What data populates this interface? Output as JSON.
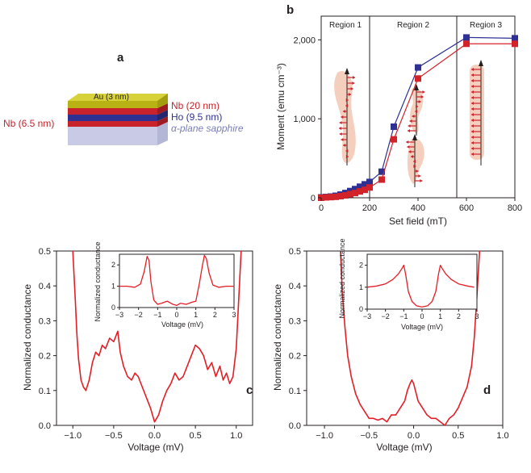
{
  "figure": {
    "panels": {
      "a": {
        "letter": "a",
        "layers": [
          {
            "label": "Au (3 nm)",
            "color": "#c9c31a"
          },
          {
            "label": "Nb (20 nm)",
            "color": "#c8232c"
          },
          {
            "label": "Ho (9.5 nm)",
            "color": "#2e3192"
          },
          {
            "label": "Nb (6.5 nm)",
            "color": "#c8232c"
          },
          {
            "label": "α-plane sapphire",
            "color": "#c9cbe6"
          }
        ],
        "label_colors": {
          "nb": "#c8232c",
          "ho": "#2e3192",
          "sapphire": "#7b7fb8"
        }
      },
      "b": {
        "letter": "b"
      },
      "c": {
        "letter": "c"
      },
      "d": {
        "letter": "d"
      }
    }
  },
  "chart_data": [
    {
      "id": "b",
      "type": "line",
      "title": "",
      "xlabel": "Set field (mT)",
      "ylabel": "Moment (emu cm⁻³)",
      "xlim": [
        0,
        800
      ],
      "ylim": [
        0,
        2300
      ],
      "xticks": [
        "0",
        "200",
        "400",
        "600",
        "800"
      ],
      "yticks": [
        "0",
        "1,000",
        "2,000"
      ],
      "regions": [
        {
          "label": "Region 1",
          "from": 0,
          "to": 200
        },
        {
          "label": "Region 2",
          "from": 200,
          "to": 560
        },
        {
          "label": "Region 3",
          "from": 560,
          "to": 800
        }
      ],
      "series": [
        {
          "name": "blue",
          "color": "#2e3192",
          "x": [
            0,
            20,
            40,
            60,
            80,
            100,
            120,
            140,
            160,
            180,
            200,
            250,
            300,
            400,
            600,
            800
          ],
          "values": [
            5,
            10,
            15,
            25,
            40,
            60,
            85,
            110,
            140,
            170,
            200,
            330,
            900,
            1650,
            2030,
            2020
          ]
        },
        {
          "name": "red",
          "color": "#d2232a",
          "x": [
            0,
            20,
            40,
            60,
            80,
            100,
            120,
            140,
            160,
            180,
            200,
            250,
            300,
            400,
            600,
            800
          ],
          "values": [
            0,
            5,
            8,
            12,
            20,
            30,
            45,
            60,
            80,
            100,
            130,
            230,
            740,
            1510,
            1950,
            1950
          ]
        }
      ],
      "colors": {
        "region_line": "#231f20",
        "spin_arrow": "#c8232c",
        "spin_blob": "#f2c7b3"
      }
    },
    {
      "id": "c",
      "type": "line",
      "xlabel": "Voltage (mV)",
      "ylabel": "Normalized conductance",
      "xlim": [
        -1.2,
        1.2
      ],
      "ylim": [
        0,
        0.5
      ],
      "xticks": [
        "−1.0",
        "−0.5",
        "0.0",
        "0.5",
        "1.0"
      ],
      "yticks": [
        "0.0",
        "0.1",
        "0.2",
        "0.3",
        "0.4",
        "0.5"
      ],
      "series": [
        {
          "name": "conductance",
          "color": "#e41e26",
          "x": [
            -1.0,
            -0.97,
            -0.95,
            -0.93,
            -0.9,
            -0.87,
            -0.84,
            -0.8,
            -0.76,
            -0.72,
            -0.68,
            -0.64,
            -0.6,
            -0.55,
            -0.5,
            -0.45,
            -0.42,
            -0.38,
            -0.33,
            -0.28,
            -0.24,
            -0.2,
            -0.15,
            -0.1,
            -0.05,
            0.0,
            0.05,
            0.1,
            0.15,
            0.2,
            0.25,
            0.3,
            0.35,
            0.4,
            0.45,
            0.5,
            0.55,
            0.6,
            0.65,
            0.7,
            0.75,
            0.8,
            0.84,
            0.88,
            0.92,
            0.96,
            1.0,
            1.03,
            1.06
          ],
          "values": [
            0.5,
            0.36,
            0.26,
            0.19,
            0.13,
            0.11,
            0.1,
            0.13,
            0.18,
            0.21,
            0.2,
            0.23,
            0.22,
            0.25,
            0.24,
            0.27,
            0.21,
            0.17,
            0.14,
            0.13,
            0.15,
            0.14,
            0.11,
            0.08,
            0.05,
            0.01,
            0.03,
            0.07,
            0.1,
            0.12,
            0.15,
            0.13,
            0.14,
            0.17,
            0.2,
            0.23,
            0.22,
            0.2,
            0.16,
            0.18,
            0.14,
            0.17,
            0.13,
            0.15,
            0.12,
            0.14,
            0.22,
            0.36,
            0.5
          ]
        }
      ],
      "inset": {
        "xlabel": "Voltage (mV)",
        "ylabel": "Normalized conductance",
        "xlim": [
          -3,
          3
        ],
        "ylim": [
          0,
          2.5
        ],
        "xticks": [
          "−3",
          "−2",
          "−1",
          "0",
          "1",
          "2",
          "3"
        ],
        "yticks": [
          "0",
          "1",
          "2"
        ],
        "x": [
          -3,
          -2.6,
          -2.2,
          -1.9,
          -1.7,
          -1.55,
          -1.45,
          -1.35,
          -1.2,
          -1.0,
          -0.8,
          -0.5,
          -0.2,
          0.0,
          0.2,
          0.5,
          0.8,
          1.0,
          1.2,
          1.35,
          1.45,
          1.55,
          1.7,
          1.9,
          2.2,
          2.6,
          3.0
        ],
        "values": [
          1.0,
          1.0,
          0.95,
          1.1,
          1.7,
          2.4,
          2.2,
          1.2,
          0.35,
          0.15,
          0.2,
          0.3,
          0.15,
          0.1,
          0.2,
          0.15,
          0.25,
          0.3,
          1.2,
          2.0,
          2.45,
          2.3,
          1.6,
          1.05,
          0.95,
          1.0,
          1.0
        ]
      },
      "letter": "c"
    },
    {
      "id": "d",
      "type": "line",
      "xlabel": "Voltage (mV)",
      "ylabel": "Normalized conductance",
      "xlim": [
        -1.2,
        1.0
      ],
      "ylim": [
        0,
        0.5
      ],
      "xticks": [
        "−1.0",
        "−0.5",
        "0.0",
        "0.5",
        "1.0"
      ],
      "yticks": [
        "0.0",
        "0.1",
        "0.2",
        "0.3",
        "0.4",
        "0.5"
      ],
      "series": [
        {
          "name": "conductance",
          "color": "#e41e26",
          "x": [
            -0.82,
            -0.8,
            -0.77,
            -0.74,
            -0.7,
            -0.65,
            -0.6,
            -0.55,
            -0.5,
            -0.45,
            -0.4,
            -0.35,
            -0.3,
            -0.25,
            -0.2,
            -0.15,
            -0.1,
            -0.07,
            -0.04,
            -0.02,
            0.0,
            0.02,
            0.05,
            0.1,
            0.15,
            0.2,
            0.25,
            0.3,
            0.35,
            0.4,
            0.45,
            0.5,
            0.55,
            0.6,
            0.65,
            0.68,
            0.71,
            0.74
          ],
          "values": [
            0.5,
            0.38,
            0.28,
            0.2,
            0.14,
            0.09,
            0.06,
            0.04,
            0.02,
            0.02,
            0.015,
            0.02,
            0.01,
            0.03,
            0.03,
            0.05,
            0.07,
            0.1,
            0.12,
            0.13,
            0.12,
            0.1,
            0.07,
            0.05,
            0.03,
            0.02,
            0.02,
            0.01,
            0.0,
            0.02,
            0.03,
            0.05,
            0.08,
            0.11,
            0.17,
            0.25,
            0.37,
            0.5
          ]
        }
      ],
      "inset": {
        "xlabel": "Voltage (mV)",
        "ylabel": "Normalized conductance",
        "xlim": [
          -3,
          3
        ],
        "ylim": [
          0,
          2.5
        ],
        "xticks": [
          "−3",
          "−2",
          "−1",
          "0",
          "1",
          "2",
          "3"
        ],
        "yticks": [
          "0",
          "1",
          "2"
        ],
        "x": [
          -3,
          -2.5,
          -2.0,
          -1.6,
          -1.3,
          -1.1,
          -1.0,
          -0.9,
          -0.75,
          -0.55,
          -0.3,
          0.0,
          0.3,
          0.55,
          0.75,
          0.9,
          1.0,
          1.1,
          1.3,
          1.6,
          2.0,
          2.5,
          2.85
        ],
        "values": [
          1.0,
          1.05,
          1.15,
          1.35,
          1.6,
          1.85,
          2.0,
          1.6,
          0.8,
          0.35,
          0.15,
          0.1,
          0.15,
          0.35,
          0.8,
          1.6,
          2.0,
          1.85,
          1.6,
          1.35,
          1.15,
          1.05,
          1.0
        ]
      },
      "letter": "d"
    }
  ]
}
